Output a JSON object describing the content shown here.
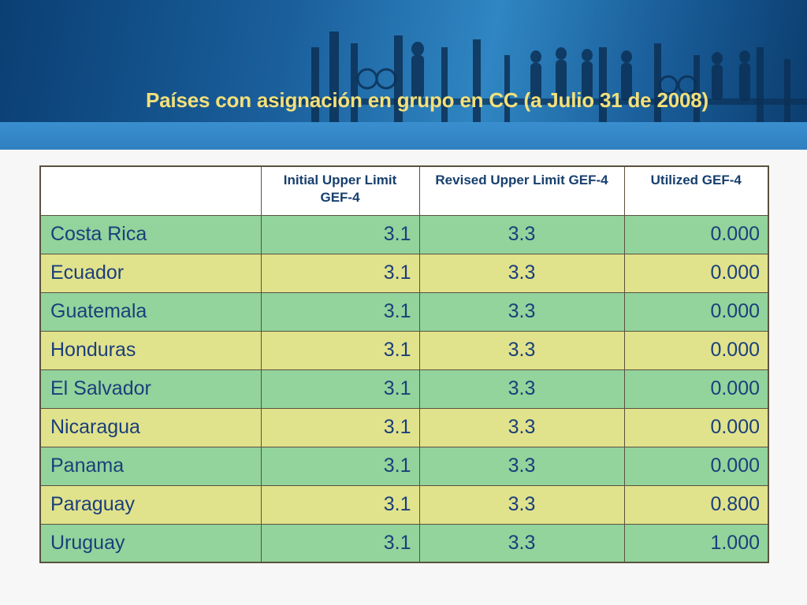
{
  "slide": {
    "title": "Países con asignación en grupo en CC (a Julio 31 de 2008)",
    "colors": {
      "banner_dark": "#0a3f73",
      "banner_light": "#2f86c2",
      "title": "#f3e07a",
      "row_green": "#92d49c",
      "row_yellow": "#e1e28c",
      "text": "#1a3f7a"
    }
  },
  "table": {
    "headers": [
      "",
      "Initial Upper Limit GEF-4",
      "Revised Upper Limit GEF-4",
      "Utilized GEF-4"
    ],
    "rows": [
      {
        "country": "Costa Rica",
        "initial": "3.1",
        "revised": "3.3",
        "utilized": "0.000"
      },
      {
        "country": "Ecuador",
        "initial": "3.1",
        "revised": "3.3",
        "utilized": "0.000"
      },
      {
        "country": "Guatemala",
        "initial": "3.1",
        "revised": "3.3",
        "utilized": "0.000"
      },
      {
        "country": "Honduras",
        "initial": "3.1",
        "revised": "3.3",
        "utilized": "0.000"
      },
      {
        "country": "El Salvador",
        "initial": "3.1",
        "revised": "3.3",
        "utilized": "0.000"
      },
      {
        "country": "Nicaragua",
        "initial": "3.1",
        "revised": "3.3",
        "utilized": "0.000"
      },
      {
        "country": "Panama",
        "initial": "3.1",
        "revised": "3.3",
        "utilized": "0.000"
      },
      {
        "country": "Paraguay",
        "initial": "3.1",
        "revised": "3.3",
        "utilized": "0.800"
      },
      {
        "country": "Uruguay",
        "initial": "3.1",
        "revised": "3.3",
        "utilized": "1.000"
      }
    ]
  }
}
